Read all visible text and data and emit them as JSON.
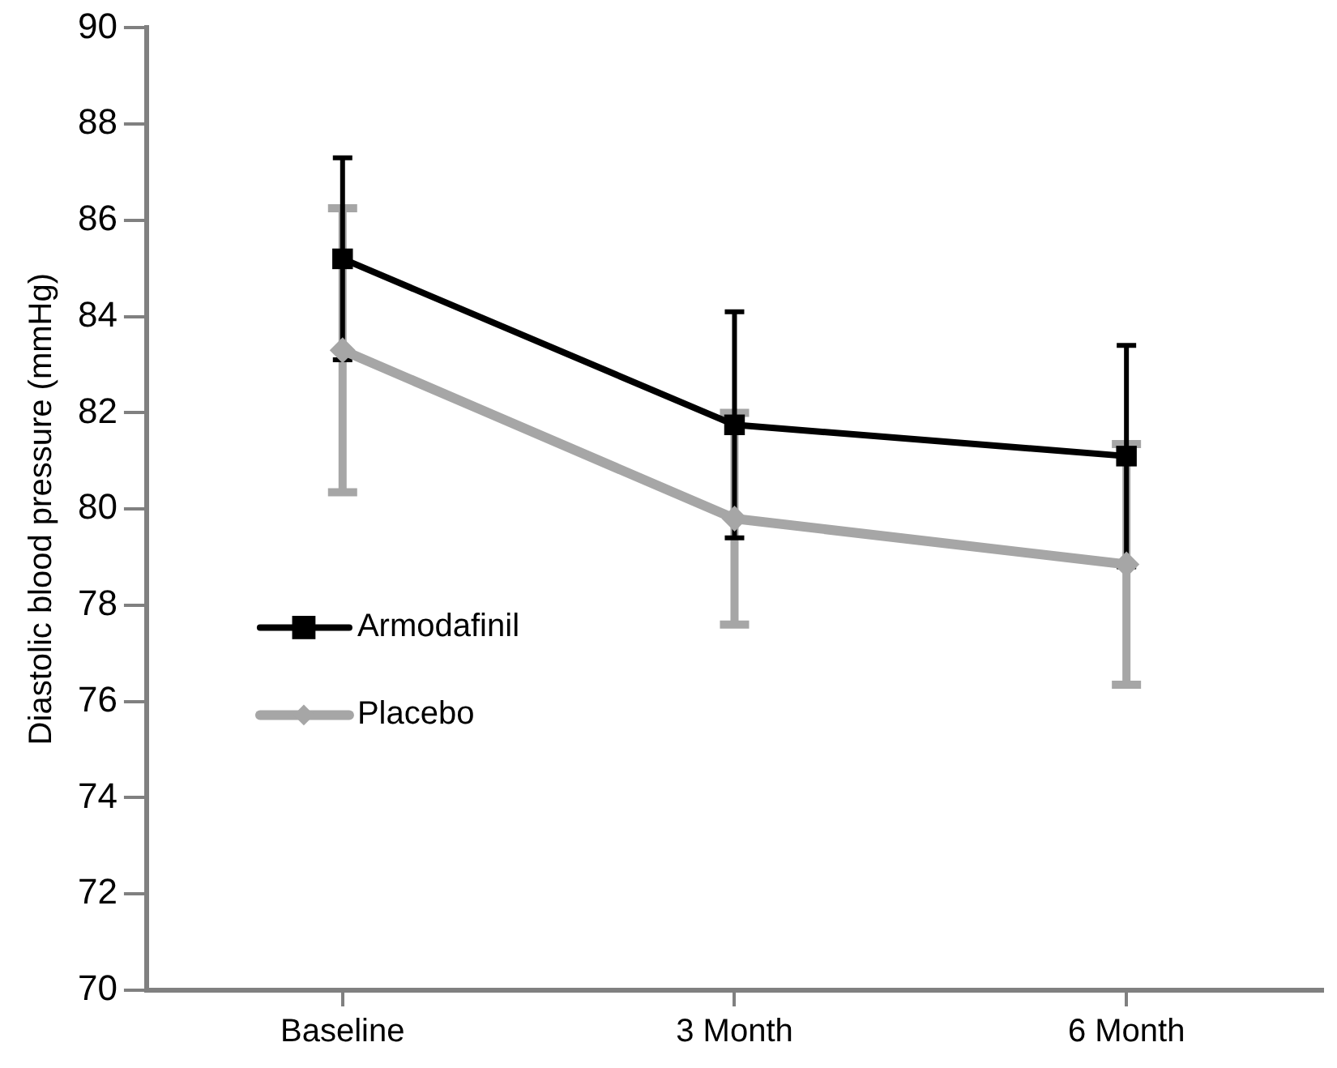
{
  "chart_data": {
    "type": "line",
    "ylabel": "Diastolic blood pressure (mmHg)",
    "categories": [
      "Baseline",
      "3 Month",
      "6 Month"
    ],
    "series": [
      {
        "name": "Armodafinil",
        "color": "#000000",
        "marker": "square",
        "values": [
          85.2,
          81.75,
          81.1
        ],
        "errors": [
          2.1,
          2.35,
          2.3
        ]
      },
      {
        "name": "Placebo",
        "color": "#a6a6a6",
        "marker": "diamond",
        "values": [
          83.3,
          79.8,
          78.85
        ],
        "errors": [
          2.95,
          2.2,
          2.5
        ]
      }
    ],
    "ylim": [
      70,
      90
    ],
    "yticks": [
      70,
      72,
      74,
      76,
      78,
      80,
      82,
      84,
      86,
      88,
      90
    ],
    "grid": false,
    "legend": "left",
    "line_style": "solid"
  }
}
